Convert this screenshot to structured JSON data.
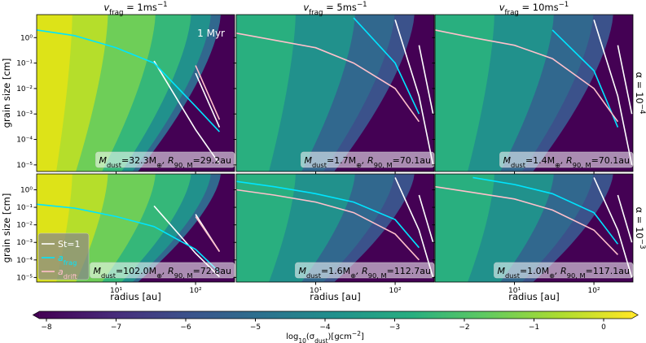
{
  "chart_data": {
    "type": "contour-grid",
    "column_titles": [
      [
        "v",
        "frag",
        " = 1ms",
        "−1"
      ],
      [
        "v",
        "frag",
        " = 5ms",
        "−1"
      ],
      [
        "v",
        "frag",
        " = 10ms",
        "−1"
      ]
    ],
    "row_labels": [
      [
        "α = 10",
        "−4"
      ],
      [
        "α = 10",
        "−3"
      ]
    ],
    "x_label": "radius [au]",
    "y_label": "grain size [cm]",
    "time_label": "1 Myr",
    "log_x": true,
    "log_y": true,
    "xlim": [
      1,
      310
    ],
    "ylim": [
      5.5e-06,
      8
    ],
    "xticks": [
      {
        "value": 10,
        "label": "10¹"
      },
      {
        "value": 100,
        "label": "10²"
      }
    ],
    "yticks": [
      {
        "value": 1e-05,
        "label": "10⁻⁵"
      },
      {
        "value": 0.0001,
        "label": "10⁻⁴"
      },
      {
        "value": 0.001,
        "label": "10⁻³"
      },
      {
        "value": 0.01,
        "label": "10⁻²"
      },
      {
        "value": 0.1,
        "label": "10⁻¹"
      },
      {
        "value": 1,
        "label": "10⁰"
      }
    ],
    "x": [
      1,
      3,
      10,
      30,
      100,
      200,
      300
    ],
    "legend": "lower left",
    "legend_entries": [
      {
        "name": [
          "St=1"
        ],
        "color": "#ffffff"
      },
      {
        "name": [
          "a",
          "frag"
        ],
        "color": "#00e5ff"
      },
      {
        "name": [
          "a",
          "drift"
        ],
        "color": "#ffc0cb"
      }
    ],
    "panels": [
      {
        "annotation": [
          "M",
          "dust",
          "=32.3M",
          "⊕",
          ", R",
          "90, M",
          "=29.2au"
        ],
        "series": [
          {
            "color": "#ffffff",
            "values": [
              null,
              null,
              null,
              0.12,
              0.00024,
              1.1e-05,
              null
            ]
          },
          {
            "color": "#ffffff",
            "values": [
              null,
              null,
              null,
              null,
              0.04,
              0.0003,
              null
            ]
          },
          {
            "color": "#00e5ff",
            "values": [
              2,
              1.2,
              0.4,
              0.1,
              0.002,
              0.0002,
              null
            ]
          },
          {
            "color": "#ffc0cb",
            "values": [
              null,
              null,
              null,
              null,
              0.08,
              0.0006,
              null
            ]
          }
        ]
      },
      {
        "annotation": [
          "M",
          "dust",
          "=1.7M",
          "⊕",
          ", R",
          "90, M",
          "=70.1au"
        ],
        "series": [
          {
            "color": "#ffffff",
            "values": [
              null,
              null,
              null,
              null,
              5,
              0.005,
              1e-05
            ]
          },
          {
            "color": "#ffffff",
            "values": [
              null,
              null,
              null,
              null,
              null,
              0.5,
              0.001
            ]
          },
          {
            "color": "#00e5ff",
            "values": [
              null,
              null,
              null,
              6,
              0.1,
              0.001,
              null
            ]
          },
          {
            "color": "#ffc0cb",
            "values": [
              1.5,
              0.8,
              0.4,
              0.1,
              0.01,
              0.0005,
              null
            ]
          }
        ]
      },
      {
        "annotation": [
          "M",
          "dust",
          "=1.4M",
          "⊕",
          ", R",
          "90, M",
          "=70.1au"
        ],
        "series": [
          {
            "color": "#ffffff",
            "values": [
              null,
              null,
              null,
              null,
              5,
              0.005,
              1e-05
            ]
          },
          {
            "color": "#ffffff",
            "values": [
              null,
              null,
              null,
              null,
              null,
              0.5,
              0.001
            ]
          },
          {
            "color": "#00e5ff",
            "values": [
              null,
              null,
              null,
              2,
              0.05,
              0.0003,
              null
            ]
          },
          {
            "color": "#ffc0cb",
            "values": [
              2,
              1,
              0.5,
              0.15,
              0.01,
              0.0005,
              null
            ]
          }
        ]
      },
      {
        "annotation": [
          "M",
          "dust",
          "=102.0M",
          "⊕",
          ", R",
          "90, M",
          "=72.8au"
        ],
        "series": [
          {
            "color": "#ffffff",
            "values": [
              null,
              null,
              null,
              0.12,
              0.00024,
              1.1e-05,
              null
            ]
          },
          {
            "color": "#ffffff",
            "values": [
              null,
              null,
              null,
              null,
              0.04,
              0.0003,
              null
            ]
          },
          {
            "color": "#00e5ff",
            "values": [
              0.15,
              0.09,
              0.03,
              0.008,
              0.0004,
              2e-05,
              null
            ]
          },
          {
            "color": "#ffc0cb",
            "values": [
              null,
              null,
              null,
              null,
              0.03,
              0.0003,
              null
            ]
          }
        ]
      },
      {
        "annotation": [
          "M",
          "dust",
          "=1.6M",
          "⊕",
          ", R",
          "90, M",
          "=112.7au"
        ],
        "series": [
          {
            "color": "#ffffff",
            "values": [
              null,
              null,
              null,
              null,
              5,
              0.005,
              1e-05
            ]
          },
          {
            "color": "#ffffff",
            "values": [
              null,
              null,
              null,
              null,
              null,
              0.5,
              0.001
            ]
          },
          {
            "color": "#00e5ff",
            "values": [
              3,
              1.5,
              0.6,
              0.2,
              0.02,
              0.0005,
              null
            ]
          },
          {
            "color": "#ffc0cb",
            "values": [
              1,
              0.5,
              0.2,
              0.05,
              0.003,
              0.0001,
              null
            ]
          }
        ]
      },
      {
        "annotation": [
          "M",
          "dust",
          "=1.0M",
          "⊕",
          ", R",
          "90, M",
          "=117.1au"
        ],
        "series": [
          {
            "color": "#ffffff",
            "values": [
              null,
              null,
              null,
              null,
              5,
              0.005,
              1e-05
            ]
          },
          {
            "color": "#ffffff",
            "values": [
              null,
              null,
              null,
              null,
              null,
              0.5,
              0.001
            ]
          },
          {
            "color": "#00e5ff",
            "values": [
              null,
              5,
              2,
              0.6,
              0.05,
              0.0008,
              null
            ]
          },
          {
            "color": "#ffc0cb",
            "values": [
              1.5,
              0.7,
              0.3,
              0.07,
              0.005,
              0.0002,
              null
            ]
          }
        ]
      }
    ],
    "colorbar": {
      "label": [
        "log",
        "10",
        "(σ",
        "dust",
        ")[gcm",
        "−2",
        "]"
      ],
      "lim": [
        -8.1,
        0.4
      ],
      "ticks": [
        {
          "value": -8,
          "label": "−8"
        },
        {
          "value": -7,
          "label": "−7"
        },
        {
          "value": -6,
          "label": "−6"
        },
        {
          "value": -5,
          "label": "−5"
        },
        {
          "value": -4,
          "label": "−4"
        },
        {
          "value": -3,
          "label": "−3"
        },
        {
          "value": -2,
          "label": "−2"
        },
        {
          "value": -1,
          "label": "−1"
        },
        0
      ]
    }
  }
}
